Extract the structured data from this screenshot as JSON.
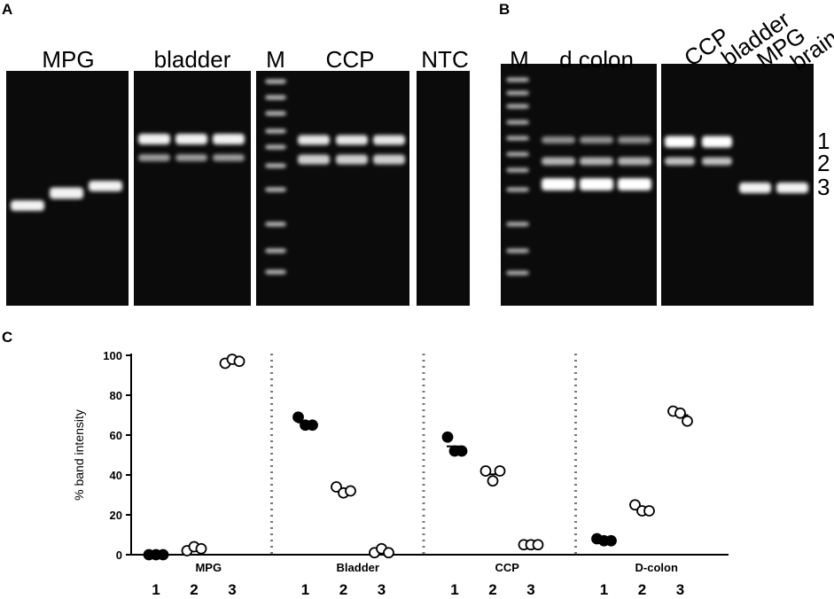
{
  "panel_a": {
    "label": "A",
    "lane_labels": [
      "MPG",
      "bladder",
      "M",
      "CCP",
      "NTC"
    ]
  },
  "panel_b": {
    "label": "B",
    "lane_labels": [
      "M",
      "d colon",
      "CCP",
      "bladder",
      "MPG",
      "brain"
    ],
    "band_labels": [
      "1",
      "2",
      "3"
    ]
  },
  "chart_data": {
    "type": "strip",
    "label": "C",
    "y_label": "% band intensity",
    "ylim": [
      0,
      100
    ],
    "yticks": [
      0,
      20,
      40,
      60,
      80,
      100
    ],
    "groups": [
      {
        "name": "MPG",
        "lanes": [
          {
            "label": "1",
            "filled": true,
            "values": [
              0,
              0,
              0
            ]
          },
          {
            "label": "2",
            "filled": false,
            "values": [
              2,
              4,
              3
            ]
          },
          {
            "label": "3",
            "filled": false,
            "values": [
              96,
              98,
              97
            ]
          }
        ]
      },
      {
        "name": "Bladder",
        "lanes": [
          {
            "label": "1",
            "filled": true,
            "values": [
              69,
              65,
              65
            ]
          },
          {
            "label": "2",
            "filled": false,
            "values": [
              34,
              31,
              32
            ]
          },
          {
            "label": "3",
            "filled": false,
            "values": [
              1,
              3,
              1
            ]
          }
        ]
      },
      {
        "name": "CCP",
        "lanes": [
          {
            "label": "1",
            "filled": true,
            "values": [
              59,
              52,
              52
            ]
          },
          {
            "label": "2",
            "filled": false,
            "values": [
              42,
              37,
              42
            ]
          },
          {
            "label": "3",
            "filled": false,
            "values": [
              5,
              5,
              5
            ]
          }
        ]
      },
      {
        "name": "D-colon",
        "lanes": [
          {
            "label": "1",
            "filled": true,
            "values": [
              8,
              7,
              7
            ]
          },
          {
            "label": "2",
            "filled": false,
            "values": [
              25,
              22,
              22
            ]
          },
          {
            "label": "3",
            "filled": false,
            "values": [
              72,
              71,
              67
            ]
          }
        ]
      }
    ]
  }
}
